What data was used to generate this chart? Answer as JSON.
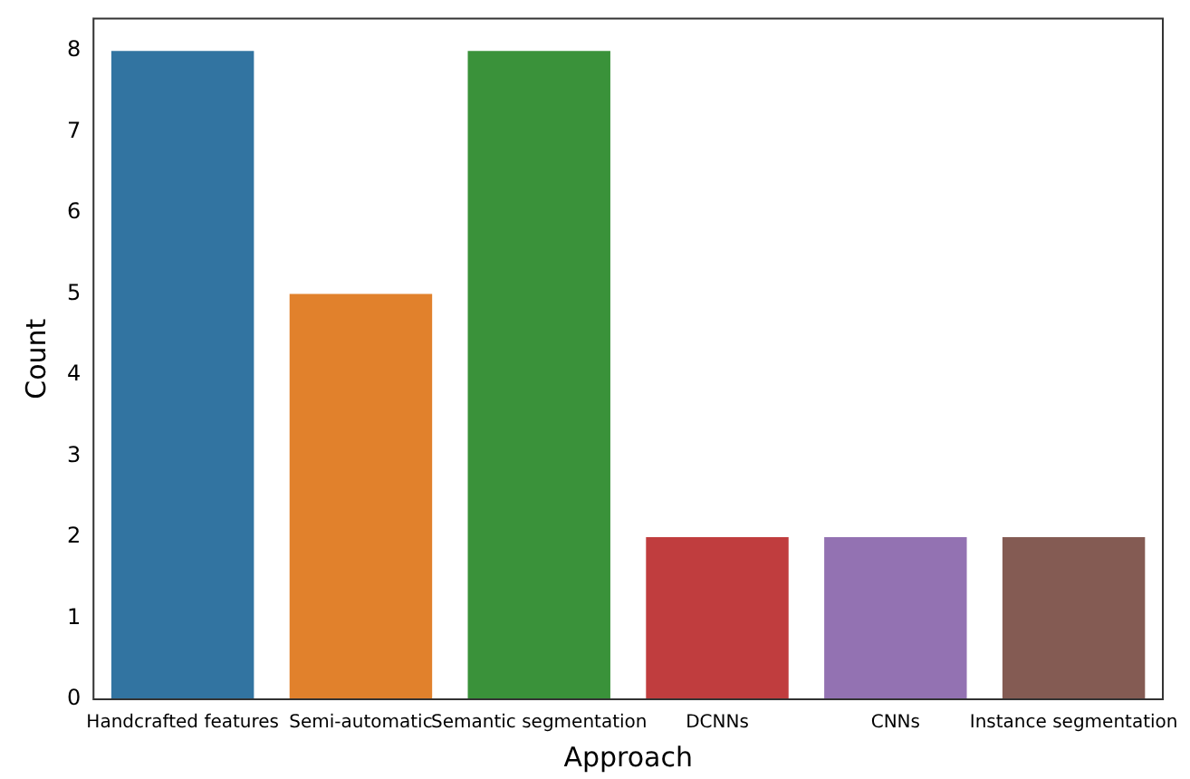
{
  "chart_data": {
    "type": "bar",
    "xlabel": "Approach",
    "ylabel": "Count",
    "categories": [
      "Handcrafted features",
      "Semi-automatic",
      "Semantic segmentation",
      "DCNNs",
      "CNNs",
      "Instance segmentation"
    ],
    "values": [
      8,
      5,
      8,
      2,
      2,
      2
    ],
    "colors": [
      "#3274a1",
      "#e1812c",
      "#3a923a",
      "#c03d3e",
      "#9372b2",
      "#845b53"
    ],
    "ylim": [
      0,
      8.4
    ],
    "yticks": [
      0,
      1,
      2,
      3,
      4,
      5,
      6,
      7,
      8
    ],
    "grid": false,
    "legend": false
  }
}
